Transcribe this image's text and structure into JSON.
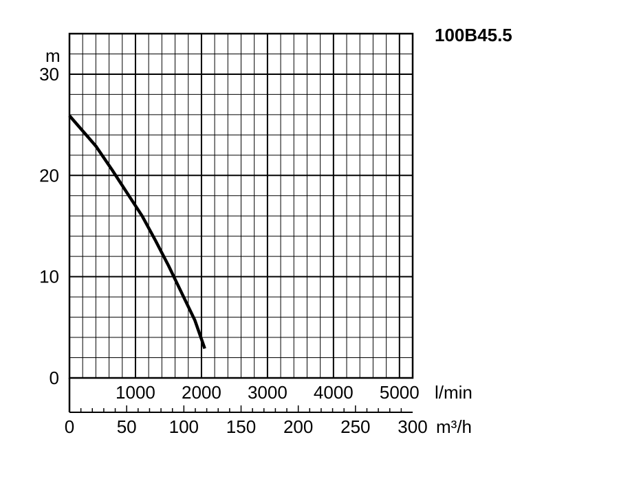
{
  "chart_data": {
    "type": "line",
    "title": "100B45.5",
    "y_unit": "m",
    "ylim": [
      0,
      34
    ],
    "yticks": [
      0,
      10,
      20,
      30
    ],
    "x_primary_unit": "l/min",
    "x_primary_range": [
      0,
      5200
    ],
    "x_primary_ticks": [
      1000,
      2000,
      3000,
      4000,
      5000
    ],
    "x_secondary_unit": "m³/h",
    "x_secondary_ticks": [
      0,
      50,
      100,
      150,
      200,
      250,
      300
    ],
    "grid": true,
    "series": [
      {
        "x": [
          0,
          400,
          650,
          900,
          1100,
          1300,
          1500,
          1700,
          1900,
          2050
        ],
        "y": [
          25.9,
          22.9,
          20.5,
          18.0,
          16.0,
          13.6,
          11.1,
          8.4,
          5.7,
          2.9
        ]
      }
    ]
  }
}
